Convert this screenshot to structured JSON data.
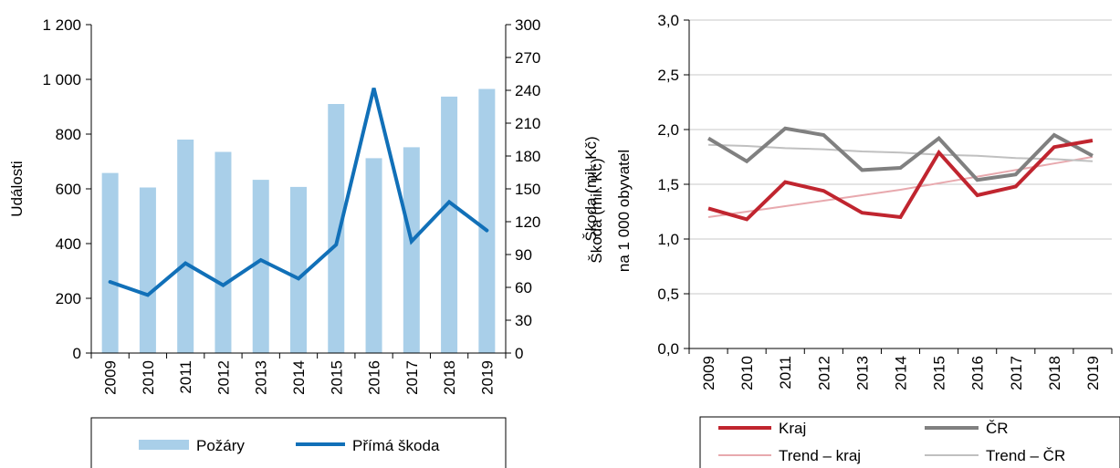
{
  "chart_data": [
    {
      "type": "bar",
      "categories": [
        "2009",
        "2010",
        "2011",
        "2012",
        "2013",
        "2014",
        "2015",
        "2016",
        "2017",
        "2018",
        "2019"
      ],
      "y_ticks": [
        "0",
        "200",
        "400",
        "600",
        "800",
        "1 000",
        "1 200"
      ],
      "y2_ticks": [
        "0",
        "30",
        "60",
        "90",
        "120",
        "150",
        "180",
        "210",
        "240",
        "270",
        "300"
      ],
      "ylabel": "Události",
      "y2label": "Škoda (mil. Kč)",
      "ylim": [
        0,
        1200
      ],
      "y2lim": [
        0,
        300
      ],
      "grid": false,
      "legend_position": "bottom",
      "series": [
        {
          "name": "Požáry",
          "type": "bar",
          "axis": "left",
          "color": "#a9cfe9",
          "values": [
            658,
            605,
            780,
            735,
            633,
            607,
            910,
            712,
            752,
            937,
            965
          ]
        },
        {
          "name": "Přímá škoda",
          "type": "line",
          "axis": "right",
          "color": "#1170b8",
          "values": [
            65,
            53,
            82,
            62,
            85,
            68,
            99,
            242,
            102,
            138,
            112
          ]
        }
      ]
    },
    {
      "type": "line",
      "categories": [
        "2009",
        "2010",
        "2011",
        "2012",
        "2013",
        "2014",
        "2015",
        "2016",
        "2017",
        "2018",
        "2019"
      ],
      "y_ticks": [
        "0,0",
        "0,5",
        "1,0",
        "1,5",
        "2,0",
        "2,5",
        "3,0"
      ],
      "ylabel": "na 1 000 obyvatel",
      "ylim": [
        0,
        3
      ],
      "grid": true,
      "legend_position": "bottom",
      "series": [
        {
          "name": "Kraj",
          "color": "#c0252f",
          "width": 4,
          "values": [
            1.28,
            1.18,
            1.52,
            1.44,
            1.24,
            1.2,
            1.79,
            1.4,
            1.48,
            1.84,
            1.9
          ]
        },
        {
          "name": "ČR",
          "color": "#808080",
          "width": 4,
          "values": [
            1.92,
            1.71,
            2.01,
            1.95,
            1.63,
            1.65,
            1.92,
            1.54,
            1.59,
            1.95,
            1.76
          ]
        },
        {
          "name": "Trend – kraj",
          "color": "#e8a9ae",
          "width": 2,
          "values": [
            1.2,
            1.25,
            1.3,
            1.35,
            1.4,
            1.45,
            1.51,
            1.57,
            1.63,
            1.69,
            1.75
          ]
        },
        {
          "name": "Trend – ČR",
          "color": "#c0c0c0",
          "width": 2,
          "values": [
            1.86,
            1.85,
            1.83,
            1.82,
            1.8,
            1.79,
            1.77,
            1.76,
            1.74,
            1.73,
            1.71
          ]
        }
      ]
    }
  ]
}
